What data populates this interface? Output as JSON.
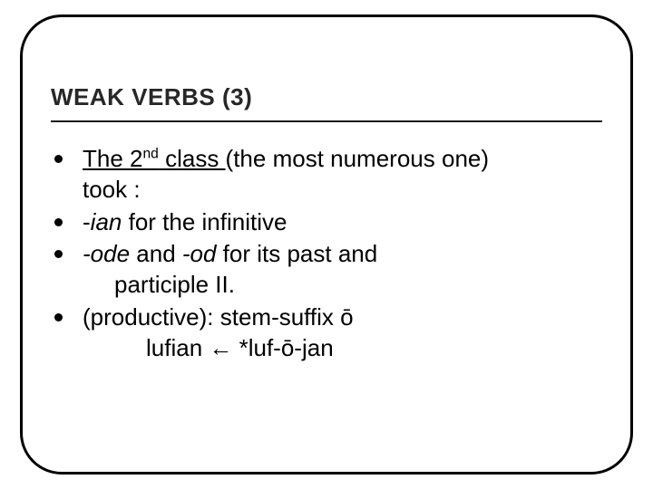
{
  "slide": {
    "title": "WEAK VERBS (3)",
    "title_color": "#272727",
    "title_fontsize": 26,
    "body_fontsize": 26,
    "hr_color": "#1a1a1a",
    "bullet_color": "#000000",
    "frame_border_color": "#000000",
    "frame_border_radius": 46,
    "background_color": "#ffffff",
    "b1_part1": "The 2",
    "b1_sup": "nd",
    "b1_part2": " class ",
    "b1_rest": "(the most numerous one)",
    "b1_line2": "took :",
    "b2_pre": " -",
    "b2_ian": "ian",
    "b2_post": " for the infinitive",
    "b3_pre": " ",
    "b3_ode": "-ode",
    "b3_mid": "  and   ",
    "b3_od": "-od",
    "b3_post": " for its past and",
    "b3_line2": "participle II.",
    "b4_text": "(productive): stem-suffix ō",
    "b4_line2": "lufian ← *luf-ō-jan"
  }
}
